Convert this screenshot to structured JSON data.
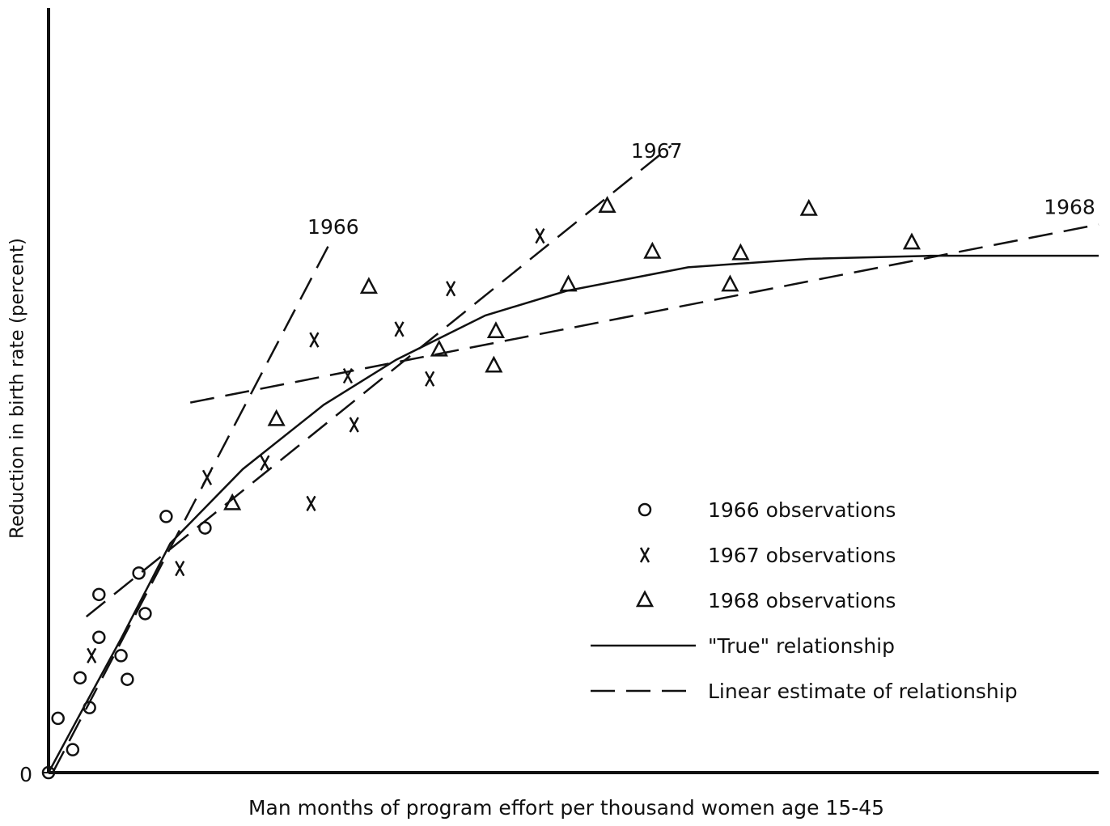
{
  "chart_data": {
    "type": "scatter",
    "xlabel": "Man months of program effort per thousand women age 15-45",
    "ylabel": "Reduction in birth rate (percent)",
    "xlim": [
      0,
      100
    ],
    "ylim": [
      0,
      100
    ],
    "yticks": [
      0
    ],
    "series": [
      {
        "name": "1966 observations",
        "marker": "circle",
        "color": "#111",
        "x": [
          0,
          0.9,
          2.3,
          3.0,
          3.9,
          4.8,
          4.8,
          6.9,
          7.5,
          8.6,
          9.2,
          11.2,
          14.9
        ],
        "values": [
          0,
          7.1,
          3.0,
          12.4,
          8.5,
          17.7,
          23.3,
          15.3,
          12.2,
          26.1,
          20.8,
          33.5,
          32.0
        ]
      },
      {
        "name": "1967 observations",
        "marker": "x",
        "color": "#111",
        "x": [
          4.1,
          12.5,
          15.1,
          20.6,
          25.0,
          25.3,
          29.1,
          28.5,
          33.4,
          36.3,
          38.3,
          46.8
        ],
        "values": [
          15.3,
          26.7,
          38.6,
          40.5,
          35.2,
          56.6,
          45.5,
          51.9,
          58.0,
          51.5,
          63.3,
          70.2
        ]
      },
      {
        "name": "1968 observations",
        "marker": "triangle",
        "color": "#111",
        "x": [
          17.5,
          21.7,
          30.5,
          37.2,
          42.6,
          42.4,
          49.5,
          53.2,
          57.5,
          64.9,
          65.9,
          72.4,
          82.2
        ],
        "values": [
          35.2,
          46.2,
          63.5,
          55.3,
          57.7,
          53.2,
          63.8,
          74.1,
          68.1,
          63.8,
          67.9,
          73.7,
          69.3
        ]
      }
    ],
    "lines": [
      {
        "name": "\"True\" relationship",
        "style": "solid",
        "color": "#111",
        "segments": [
          {
            "x": [
              0,
              3.1,
              6.9,
              11.6,
              18.5,
              26.2,
              33.1,
              41.6,
              49.3,
              60.9,
              72.4,
              84.0,
              100
            ],
            "values": [
              0,
              7.9,
              17.5,
              30.0,
              39.7,
              48.1,
              54.0,
              59.8,
              63.0,
              66.1,
              67.2,
              67.6,
              67.6
            ]
          }
        ]
      },
      {
        "name": "Linear estimate of relationship",
        "style": "dashed",
        "color": "#111",
        "segments": [
          {
            "label": "1966",
            "x": [
              0.4,
              26.8
            ],
            "values": [
              0,
              69.3
            ]
          },
          {
            "label": "1967",
            "x": [
              3.6,
              59.3
            ],
            "values": [
              20.4,
              82.0
            ]
          },
          {
            "label": "1968",
            "x": [
              13.5,
              100
            ],
            "values": [
              48.4,
              71.7
            ]
          }
        ]
      }
    ]
  }
}
